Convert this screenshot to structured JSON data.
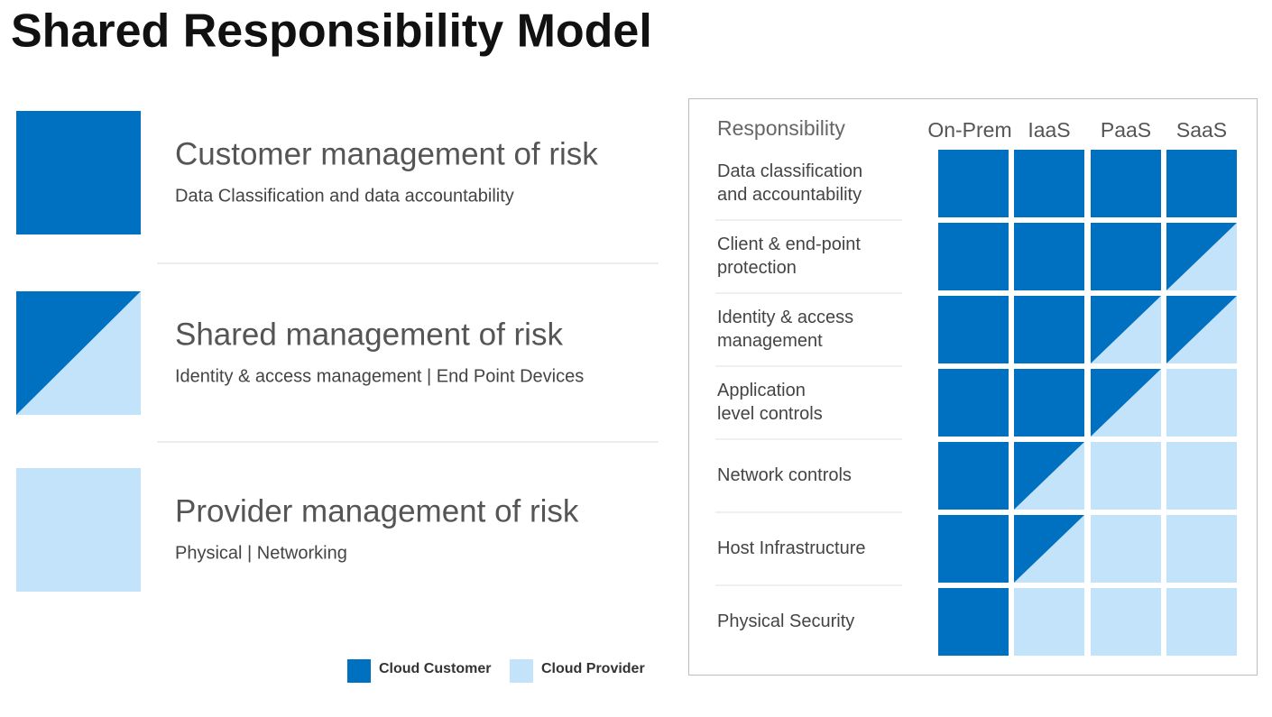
{
  "title": "Shared Responsibility Model",
  "risk_levels": [
    {
      "heading": "Customer management of risk",
      "description": "Data Classification and data accountability"
    },
    {
      "heading": "Shared management of risk",
      "description": "Identity & access management | End Point Devices"
    },
    {
      "heading": "Provider management of risk",
      "description": "Physical | Networking"
    }
  ],
  "legend": [
    {
      "label": "Cloud Customer",
      "color": "#0070c0"
    },
    {
      "label": "Cloud Provider",
      "color": "#c3e3fb"
    }
  ],
  "matrix": {
    "header": "Responsibility",
    "columns": [
      "On-Prem",
      "IaaS",
      "PaaS",
      "SaaS"
    ],
    "rows": [
      {
        "label": [
          "Data classification",
          "and accountability"
        ],
        "cells": [
          0,
          0,
          0,
          0
        ]
      },
      {
        "label": [
          "Client & end-point",
          "protection"
        ],
        "cells": [
          0,
          0,
          0,
          1
        ]
      },
      {
        "label": [
          "Identity & access",
          "management"
        ],
        "cells": [
          0,
          0,
          1,
          1
        ]
      },
      {
        "label": [
          "Application",
          "level controls"
        ],
        "cells": [
          0,
          0,
          1,
          2
        ]
      },
      {
        "label": [
          "Network controls"
        ],
        "cells": [
          0,
          1,
          2,
          2
        ]
      },
      {
        "label": [
          "Host Infrastructure"
        ],
        "cells": [
          0,
          1,
          2,
          2
        ]
      },
      {
        "label": [
          "Physical Security"
        ],
        "cells": [
          0,
          2,
          2,
          2
        ]
      }
    ]
  }
}
